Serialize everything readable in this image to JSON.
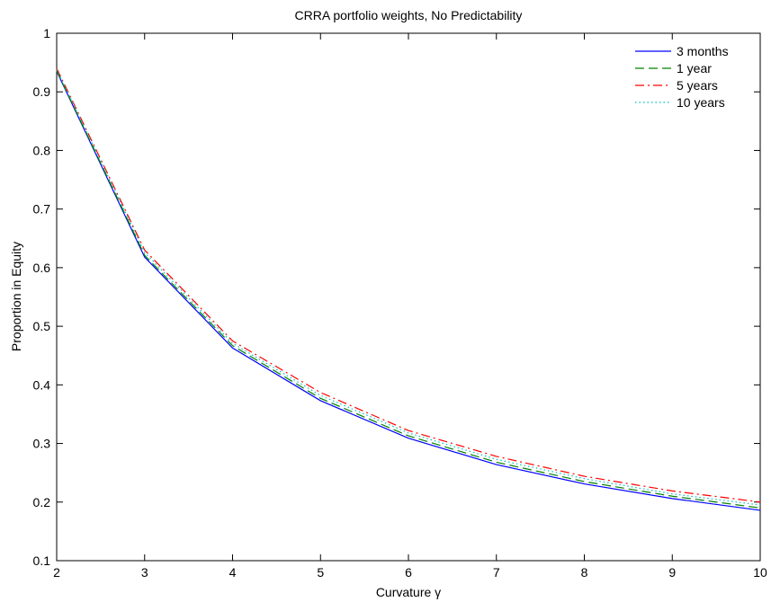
{
  "chart_data": {
    "type": "line",
    "title": "CRRA portfolio weights, No Predictability",
    "xlabel": "Curvature γ",
    "ylabel": "Proportion in Equity",
    "xlim": [
      2,
      10
    ],
    "ylim": [
      0.1,
      1
    ],
    "xticks": [
      "2",
      "3",
      "4",
      "5",
      "6",
      "7",
      "8",
      "9",
      "10"
    ],
    "yticks": [
      "0.1",
      "0.2",
      "0.3",
      "0.4",
      "0.5",
      "0.6",
      "0.7",
      "0.8",
      "0.9",
      "1"
    ],
    "grid": false,
    "legend_position": "top-right",
    "x": [
      2,
      3,
      4,
      5,
      6,
      7,
      8,
      9,
      10
    ],
    "series": [
      {
        "name": "3 months",
        "color": "#0000ff",
        "dash": "solid",
        "values": [
          0.935,
          0.618,
          0.463,
          0.373,
          0.309,
          0.264,
          0.231,
          0.206,
          0.186
        ]
      },
      {
        "name": "1 year",
        "color": "#008000",
        "dash": "dashed",
        "values": [
          0.936,
          0.621,
          0.467,
          0.377,
          0.313,
          0.268,
          0.235,
          0.21,
          0.19
        ]
      },
      {
        "name": "5 years",
        "color": "#ff0000",
        "dash": "dashdot",
        "values": [
          0.94,
          0.63,
          0.475,
          0.387,
          0.322,
          0.278,
          0.244,
          0.219,
          0.2
        ]
      },
      {
        "name": "10 years",
        "color": "#00bfbf",
        "dash": "dotted",
        "values": [
          0.938,
          0.626,
          0.471,
          0.382,
          0.318,
          0.273,
          0.24,
          0.214,
          0.195
        ]
      }
    ]
  }
}
